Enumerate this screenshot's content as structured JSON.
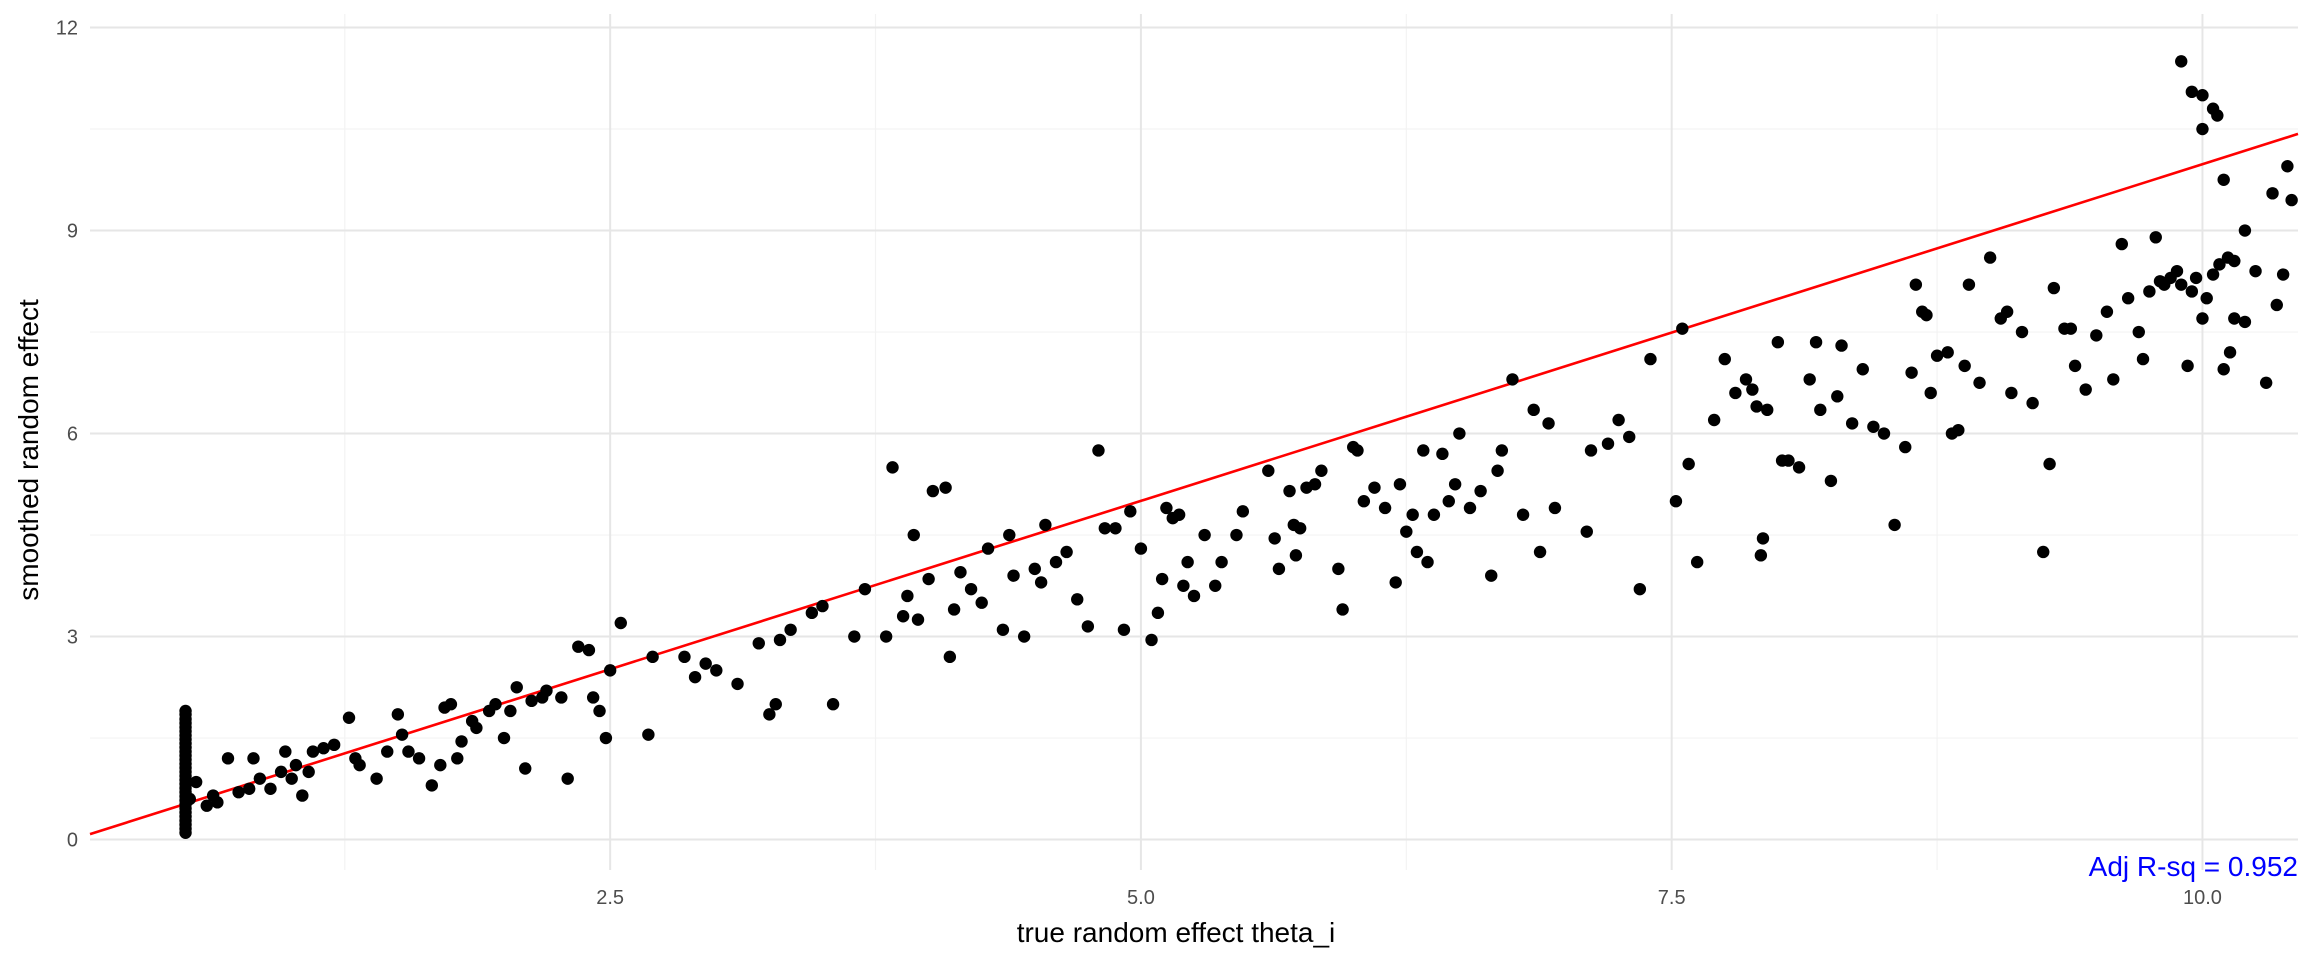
{
  "chart_data": {
    "type": "scatter",
    "title": "",
    "xlabel": "true random effect theta_i",
    "ylabel": "smoothed random effect",
    "xlim": [
      0.05,
      10.45
    ],
    "ylim": [
      -0.45,
      12.2
    ],
    "x_ticks": [
      {
        "value": 2.5,
        "label": "2.5"
      },
      {
        "value": 5.0,
        "label": "5.0"
      },
      {
        "value": 7.5,
        "label": "7.5"
      },
      {
        "value": 10.0,
        "label": "10.0"
      }
    ],
    "y_ticks": [
      {
        "value": 0,
        "label": "0"
      },
      {
        "value": 3,
        "label": "3"
      },
      {
        "value": 6,
        "label": "6"
      },
      {
        "value": 9,
        "label": "9"
      },
      {
        "value": 12,
        "label": "12"
      }
    ],
    "x_minor": [
      1.25,
      3.75,
      6.25,
      8.75
    ],
    "y_minor": [
      1.5,
      4.5,
      7.5,
      10.5
    ],
    "grid": true,
    "point_color": "#000000",
    "fit_line": {
      "color": "#ff0000",
      "intercept": 0.03,
      "slope": 0.995
    },
    "annotation": {
      "text": "Adj R-sq = 0.952",
      "color": "#0000ff",
      "placement": "bottom-right"
    },
    "points": [
      [
        0.5,
        0.1
      ],
      [
        0.5,
        0.16
      ],
      [
        0.5,
        0.22
      ],
      [
        0.5,
        0.28
      ],
      [
        0.5,
        0.34
      ],
      [
        0.5,
        0.4
      ],
      [
        0.5,
        0.46
      ],
      [
        0.5,
        0.52
      ],
      [
        0.5,
        0.58
      ],
      [
        0.5,
        0.64
      ],
      [
        0.5,
        0.7
      ],
      [
        0.5,
        0.76
      ],
      [
        0.5,
        0.82
      ],
      [
        0.5,
        0.88
      ],
      [
        0.5,
        0.94
      ],
      [
        0.5,
        1.0
      ],
      [
        0.5,
        1.06
      ],
      [
        0.5,
        1.12
      ],
      [
        0.5,
        1.18
      ],
      [
        0.5,
        1.24
      ],
      [
        0.5,
        1.3
      ],
      [
        0.5,
        1.36
      ],
      [
        0.5,
        1.42
      ],
      [
        0.5,
        1.48
      ],
      [
        0.5,
        1.54
      ],
      [
        0.5,
        1.6
      ],
      [
        0.5,
        1.66
      ],
      [
        0.5,
        1.72
      ],
      [
        0.5,
        1.78
      ],
      [
        0.5,
        1.85
      ],
      [
        0.5,
        1.9
      ],
      [
        0.52,
        0.6
      ],
      [
        0.55,
        0.85
      ],
      [
        0.6,
        0.5
      ],
      [
        0.63,
        0.65
      ],
      [
        0.65,
        0.55
      ],
      [
        0.7,
        1.2
      ],
      [
        0.75,
        0.7
      ],
      [
        0.8,
        0.75
      ],
      [
        0.82,
        1.2
      ],
      [
        0.85,
        0.9
      ],
      [
        0.9,
        0.75
      ],
      [
        0.95,
        1.0
      ],
      [
        0.97,
        1.3
      ],
      [
        1.0,
        0.9
      ],
      [
        1.02,
        1.1
      ],
      [
        1.05,
        0.65
      ],
      [
        1.08,
        1.0
      ],
      [
        1.1,
        1.3
      ],
      [
        1.15,
        1.35
      ],
      [
        1.2,
        1.4
      ],
      [
        1.27,
        1.8
      ],
      [
        1.3,
        1.2
      ],
      [
        1.32,
        1.1
      ],
      [
        1.4,
        0.9
      ],
      [
        1.45,
        1.3
      ],
      [
        1.5,
        1.85
      ],
      [
        1.52,
        1.55
      ],
      [
        1.55,
        1.3
      ],
      [
        1.6,
        1.2
      ],
      [
        1.66,
        0.8
      ],
      [
        1.7,
        1.1
      ],
      [
        1.72,
        1.95
      ],
      [
        1.75,
        2.0
      ],
      [
        1.78,
        1.2
      ],
      [
        1.8,
        1.45
      ],
      [
        1.85,
        1.75
      ],
      [
        1.87,
        1.65
      ],
      [
        1.93,
        1.9
      ],
      [
        1.96,
        2.0
      ],
      [
        2.0,
        1.5
      ],
      [
        2.03,
        1.9
      ],
      [
        2.06,
        2.25
      ],
      [
        2.1,
        1.05
      ],
      [
        2.13,
        2.05
      ],
      [
        2.18,
        2.1
      ],
      [
        2.2,
        2.2
      ],
      [
        2.27,
        2.1
      ],
      [
        2.3,
        0.9
      ],
      [
        2.35,
        2.85
      ],
      [
        2.4,
        2.8
      ],
      [
        2.42,
        2.1
      ],
      [
        2.45,
        1.9
      ],
      [
        2.48,
        1.5
      ],
      [
        2.5,
        2.5
      ],
      [
        2.55,
        3.2
      ],
      [
        2.68,
        1.55
      ],
      [
        2.7,
        2.7
      ],
      [
        2.85,
        2.7
      ],
      [
        2.9,
        2.4
      ],
      [
        2.95,
        2.6
      ],
      [
        3.0,
        2.5
      ],
      [
        3.1,
        2.3
      ],
      [
        3.2,
        2.9
      ],
      [
        3.25,
        1.85
      ],
      [
        3.28,
        2.0
      ],
      [
        3.3,
        2.95
      ],
      [
        3.35,
        3.1
      ],
      [
        3.45,
        3.35
      ],
      [
        3.5,
        3.45
      ],
      [
        3.55,
        2.0
      ],
      [
        3.65,
        3.0
      ],
      [
        3.7,
        3.7
      ],
      [
        3.8,
        3.0
      ],
      [
        3.83,
        5.5
      ],
      [
        3.88,
        3.3
      ],
      [
        3.9,
        3.6
      ],
      [
        3.93,
        4.5
      ],
      [
        3.95,
        3.25
      ],
      [
        4.0,
        3.85
      ],
      [
        4.02,
        5.15
      ],
      [
        4.08,
        5.2
      ],
      [
        4.1,
        2.7
      ],
      [
        4.12,
        3.4
      ],
      [
        4.15,
        3.95
      ],
      [
        4.2,
        3.7
      ],
      [
        4.25,
        3.5
      ],
      [
        4.28,
        4.3
      ],
      [
        4.35,
        3.1
      ],
      [
        4.38,
        4.5
      ],
      [
        4.4,
        3.9
      ],
      [
        4.45,
        3.0
      ],
      [
        4.5,
        4.0
      ],
      [
        4.53,
        3.8
      ],
      [
        4.55,
        4.65
      ],
      [
        4.6,
        4.1
      ],
      [
        4.65,
        4.25
      ],
      [
        4.7,
        3.55
      ],
      [
        4.75,
        3.15
      ],
      [
        4.8,
        5.75
      ],
      [
        4.83,
        4.6
      ],
      [
        4.88,
        4.6
      ],
      [
        4.92,
        3.1
      ],
      [
        4.95,
        4.85
      ],
      [
        5.0,
        4.3
      ],
      [
        5.05,
        2.95
      ],
      [
        5.08,
        3.35
      ],
      [
        5.1,
        3.85
      ],
      [
        5.12,
        4.9
      ],
      [
        5.15,
        4.75
      ],
      [
        5.18,
        4.8
      ],
      [
        5.2,
        3.75
      ],
      [
        5.22,
        4.1
      ],
      [
        5.25,
        3.6
      ],
      [
        5.3,
        4.5
      ],
      [
        5.35,
        3.75
      ],
      [
        5.38,
        4.1
      ],
      [
        5.45,
        4.5
      ],
      [
        5.48,
        4.85
      ],
      [
        5.6,
        5.45
      ],
      [
        5.63,
        4.45
      ],
      [
        5.65,
        4.0
      ],
      [
        5.7,
        5.15
      ],
      [
        5.72,
        4.65
      ],
      [
        5.73,
        4.2
      ],
      [
        5.75,
        4.6
      ],
      [
        5.78,
        5.2
      ],
      [
        5.82,
        5.25
      ],
      [
        5.85,
        5.45
      ],
      [
        5.93,
        4.0
      ],
      [
        5.95,
        3.4
      ],
      [
        6.0,
        5.8
      ],
      [
        6.02,
        5.75
      ],
      [
        6.05,
        5.0
      ],
      [
        6.1,
        5.2
      ],
      [
        6.15,
        4.9
      ],
      [
        6.2,
        3.8
      ],
      [
        6.22,
        5.25
      ],
      [
        6.25,
        4.55
      ],
      [
        6.28,
        4.8
      ],
      [
        6.3,
        4.25
      ],
      [
        6.33,
        5.75
      ],
      [
        6.35,
        4.1
      ],
      [
        6.38,
        4.8
      ],
      [
        6.42,
        5.7
      ],
      [
        6.45,
        5.0
      ],
      [
        6.48,
        5.25
      ],
      [
        6.5,
        6.0
      ],
      [
        6.55,
        4.9
      ],
      [
        6.6,
        5.15
      ],
      [
        6.65,
        3.9
      ],
      [
        6.68,
        5.45
      ],
      [
        6.7,
        5.75
      ],
      [
        6.75,
        6.8
      ],
      [
        6.8,
        4.8
      ],
      [
        6.85,
        6.35
      ],
      [
        6.88,
        4.25
      ],
      [
        6.92,
        6.15
      ],
      [
        6.95,
        4.9
      ],
      [
        7.1,
        4.55
      ],
      [
        7.12,
        5.75
      ],
      [
        7.2,
        5.85
      ],
      [
        7.25,
        6.2
      ],
      [
        7.3,
        5.95
      ],
      [
        7.35,
        3.7
      ],
      [
        7.4,
        7.1
      ],
      [
        7.52,
        5.0
      ],
      [
        7.55,
        7.55
      ],
      [
        7.58,
        5.55
      ],
      [
        7.62,
        4.1
      ],
      [
        7.7,
        6.2
      ],
      [
        7.75,
        7.1
      ],
      [
        7.8,
        6.6
      ],
      [
        7.85,
        6.8
      ],
      [
        7.88,
        6.65
      ],
      [
        7.9,
        6.4
      ],
      [
        7.92,
        4.2
      ],
      [
        7.93,
        4.45
      ],
      [
        7.95,
        6.35
      ],
      [
        8.0,
        7.35
      ],
      [
        8.02,
        5.6
      ],
      [
        8.05,
        5.6
      ],
      [
        8.1,
        5.5
      ],
      [
        8.15,
        6.8
      ],
      [
        8.18,
        7.35
      ],
      [
        8.2,
        6.35
      ],
      [
        8.25,
        5.3
      ],
      [
        8.28,
        6.55
      ],
      [
        8.3,
        7.3
      ],
      [
        8.35,
        6.15
      ],
      [
        8.4,
        6.95
      ],
      [
        8.45,
        6.1
      ],
      [
        8.5,
        6.0
      ],
      [
        8.55,
        4.65
      ],
      [
        8.6,
        5.8
      ],
      [
        8.63,
        6.9
      ],
      [
        8.65,
        8.2
      ],
      [
        8.68,
        7.8
      ],
      [
        8.7,
        7.75
      ],
      [
        8.72,
        6.6
      ],
      [
        8.75,
        7.15
      ],
      [
        8.8,
        7.2
      ],
      [
        8.82,
        6.0
      ],
      [
        8.85,
        6.05
      ],
      [
        8.88,
        7.0
      ],
      [
        8.9,
        8.2
      ],
      [
        8.95,
        6.75
      ],
      [
        9.0,
        8.6
      ],
      [
        9.05,
        7.7
      ],
      [
        9.08,
        7.8
      ],
      [
        9.1,
        6.6
      ],
      [
        9.15,
        7.5
      ],
      [
        9.2,
        6.45
      ],
      [
        9.25,
        4.25
      ],
      [
        9.28,
        5.55
      ],
      [
        9.3,
        8.15
      ],
      [
        9.35,
        7.55
      ],
      [
        9.38,
        7.55
      ],
      [
        9.4,
        7.0
      ],
      [
        9.45,
        6.65
      ],
      [
        9.5,
        7.45
      ],
      [
        9.55,
        7.8
      ],
      [
        9.58,
        6.8
      ],
      [
        9.62,
        8.8
      ],
      [
        9.65,
        8.0
      ],
      [
        9.7,
        7.5
      ],
      [
        9.72,
        7.1
      ],
      [
        9.75,
        8.1
      ],
      [
        9.78,
        8.9
      ],
      [
        9.8,
        8.25
      ],
      [
        9.82,
        8.2
      ],
      [
        9.85,
        8.3
      ],
      [
        9.88,
        8.4
      ],
      [
        9.9,
        8.2
      ],
      [
        9.93,
        7.0
      ],
      [
        9.95,
        8.1
      ],
      [
        9.97,
        8.3
      ],
      [
        10.0,
        7.7
      ],
      [
        10.02,
        8.0
      ],
      [
        10.05,
        8.35
      ],
      [
        10.08,
        8.5
      ],
      [
        10.1,
        6.95
      ],
      [
        10.13,
        7.2
      ],
      [
        10.15,
        7.7
      ],
      [
        10.2,
        7.65
      ],
      [
        10.0,
        11.0
      ],
      [
        9.9,
        11.5
      ],
      [
        9.95,
        11.05
      ],
      [
        10.0,
        10.5
      ],
      [
        10.05,
        10.8
      ],
      [
        10.07,
        10.7
      ],
      [
        10.1,
        9.75
      ],
      [
        10.12,
        8.6
      ],
      [
        10.15,
        8.55
      ],
      [
        10.2,
        9.0
      ],
      [
        10.25,
        8.4
      ],
      [
        10.3,
        6.75
      ],
      [
        10.33,
        9.55
      ],
      [
        10.35,
        7.9
      ],
      [
        10.38,
        8.35
      ],
      [
        10.4,
        9.95
      ],
      [
        10.42,
        9.45
      ]
    ]
  }
}
